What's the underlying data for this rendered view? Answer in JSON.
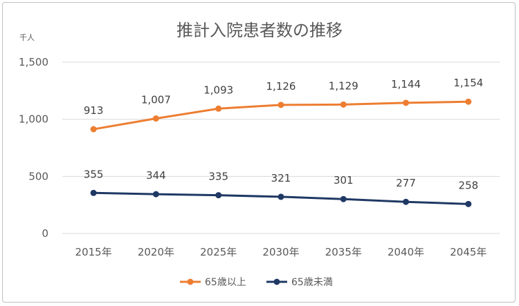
{
  "chart_data": {
    "type": "line",
    "title": "推計入院患者数の推移",
    "unit_label": "千人",
    "categories": [
      "2015年",
      "2020年",
      "2025年",
      "2030年",
      "2035年",
      "2040年",
      "2045年"
    ],
    "series": [
      {
        "name": "65歳以上",
        "color": "#ed7d31",
        "values": [
          913,
          1007,
          1093,
          1126,
          1129,
          1144,
          1154
        ],
        "labels": [
          "913",
          "1,007",
          "1,093",
          "1,126",
          "1,129",
          "1,144",
          "1,154"
        ]
      },
      {
        "name": "65歳未満",
        "color": "#1f3864",
        "values": [
          355,
          344,
          335,
          321,
          301,
          277,
          258
        ],
        "labels": [
          "355",
          "344",
          "335",
          "321",
          "301",
          "277",
          "258"
        ]
      }
    ],
    "ylim": [
      0,
      1500
    ],
    "yticks": [
      0,
      500,
      1000,
      1500
    ],
    "ytick_labels": [
      "0",
      "500",
      "1,000",
      "1,500"
    ],
    "grid": true,
    "legend_position": "bottom"
  }
}
